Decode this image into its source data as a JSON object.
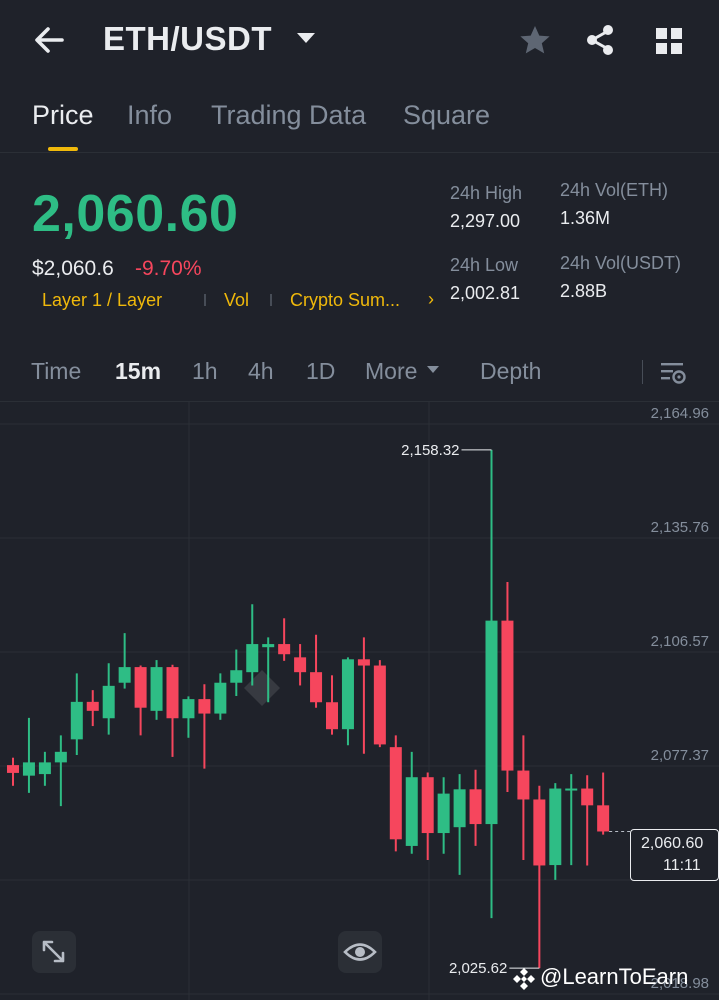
{
  "header": {
    "back_icon": "arrow-left-icon",
    "pair": "ETH/USDT",
    "favorite_icon": "star-icon",
    "share_icon": "share-icon",
    "menu_icon": "grid-icon"
  },
  "tabs": [
    {
      "label": "Price",
      "active": true
    },
    {
      "label": "Info",
      "active": false
    },
    {
      "label": "Trading Data",
      "active": false
    },
    {
      "label": "Square",
      "active": false
    }
  ],
  "ticker": {
    "last_price": "2,060.60",
    "usd_price": "$2,060.6",
    "change": "-9.70%",
    "tags": [
      "Layer 1 / Layer",
      "Vol",
      "Crypto Sum..."
    ],
    "stats": {
      "high_label": "24h High",
      "high_value": "2,297.00",
      "low_label": "24h Low",
      "low_value": "2,002.81",
      "vol_base_label": "24h Vol(ETH)",
      "vol_base_value": "1.36M",
      "vol_quote_label": "24h Vol(USDT)",
      "vol_quote_value": "2.88B"
    }
  },
  "intervals": {
    "items": [
      {
        "label": "Time",
        "active": false
      },
      {
        "label": "15m",
        "active": true
      },
      {
        "label": "1h",
        "active": false
      },
      {
        "label": "4h",
        "active": false
      },
      {
        "label": "1D",
        "active": false
      },
      {
        "label": "More",
        "active": false
      },
      {
        "label": "Depth",
        "active": false
      }
    ]
  },
  "chart_data": {
    "type": "candlestick",
    "y_ticks": [
      "2,164.96",
      "2,135.76",
      "2,106.57",
      "2,077.37",
      "2,048.18",
      "2,018.98"
    ],
    "ylim": [
      2018.98,
      2164.96
    ],
    "high_annotation": "2,158.32",
    "low_annotation": "2,025.62",
    "current_price": "2,060.60",
    "countdown": "11:11",
    "candles": [
      {
        "o": 2077.6,
        "h": 2079.5,
        "l": 2072.3,
        "c": 2075.6
      },
      {
        "o": 2074.9,
        "h": 2089.7,
        "l": 2070.5,
        "c": 2078.3
      },
      {
        "o": 2075.3,
        "h": 2081.0,
        "l": 2072.3,
        "c": 2078.3
      },
      {
        "o": 2078.3,
        "h": 2085.2,
        "l": 2067.1,
        "c": 2081.0
      },
      {
        "o": 2084.2,
        "h": 2101.1,
        "l": 2080.2,
        "c": 2093.8
      },
      {
        "o": 2093.8,
        "h": 2096.8,
        "l": 2087.6,
        "c": 2091.5
      },
      {
        "o": 2089.6,
        "h": 2103.7,
        "l": 2085.4,
        "c": 2097.9
      },
      {
        "o": 2098.7,
        "h": 2111.4,
        "l": 2097.2,
        "c": 2102.7
      },
      {
        "o": 2102.7,
        "h": 2103.1,
        "l": 2085.2,
        "c": 2092.3
      },
      {
        "o": 2091.5,
        "h": 2104.5,
        "l": 2089.2,
        "c": 2102.7
      },
      {
        "o": 2102.7,
        "h": 2103.3,
        "l": 2079.7,
        "c": 2089.6
      },
      {
        "o": 2089.6,
        "h": 2095.2,
        "l": 2084.6,
        "c": 2094.5
      },
      {
        "o": 2094.5,
        "h": 2098.3,
        "l": 2076.7,
        "c": 2090.8
      },
      {
        "o": 2090.8,
        "h": 2101.1,
        "l": 2089.2,
        "c": 2098.7
      },
      {
        "o": 2098.7,
        "h": 2107.2,
        "l": 2095.3,
        "c": 2101.9
      },
      {
        "o": 2101.4,
        "h": 2118.8,
        "l": 2098.0,
        "c": 2108.6
      },
      {
        "o": 2107.8,
        "h": 2110.3,
        "l": 2093.7,
        "c": 2108.6
      },
      {
        "o": 2108.6,
        "h": 2115.2,
        "l": 2104.3,
        "c": 2106.0
      },
      {
        "o": 2105.2,
        "h": 2108.6,
        "l": 2098.0,
        "c": 2101.4
      },
      {
        "o": 2101.4,
        "h": 2111.0,
        "l": 2092.3,
        "c": 2093.7
      },
      {
        "o": 2093.7,
        "h": 2100.6,
        "l": 2085.4,
        "c": 2086.8
      },
      {
        "o": 2086.8,
        "h": 2105.2,
        "l": 2082.7,
        "c": 2104.7
      },
      {
        "o": 2104.7,
        "h": 2110.3,
        "l": 2080.5,
        "c": 2103.1
      },
      {
        "o": 2103.1,
        "h": 2104.5,
        "l": 2082.2,
        "c": 2082.9
      },
      {
        "o": 2082.2,
        "h": 2085.2,
        "l": 2055.5,
        "c": 2058.6
      },
      {
        "o": 2056.9,
        "h": 2081.0,
        "l": 2054.9,
        "c": 2074.5
      },
      {
        "o": 2074.5,
        "h": 2075.7,
        "l": 2053.3,
        "c": 2060.2
      },
      {
        "o": 2060.2,
        "h": 2074.5,
        "l": 2054.9,
        "c": 2070.3
      },
      {
        "o": 2061.7,
        "h": 2075.3,
        "l": 2049.5,
        "c": 2071.4
      },
      {
        "o": 2071.4,
        "h": 2076.4,
        "l": 2056.9,
        "c": 2062.5
      },
      {
        "o": 2062.5,
        "h": 2158.32,
        "l": 2038.4,
        "c": 2114.6
      },
      {
        "o": 2114.6,
        "h": 2124.5,
        "l": 2070.7,
        "c": 2076.2
      },
      {
        "o": 2076.2,
        "h": 2085.2,
        "l": 2053.3,
        "c": 2068.8
      },
      {
        "o": 2068.8,
        "h": 2072.3,
        "l": 2025.62,
        "c": 2051.9
      },
      {
        "o": 2052.0,
        "h": 2073.0,
        "l": 2048.2,
        "c": 2071.6
      },
      {
        "o": 2071.6,
        "h": 2075.3,
        "l": 2052.0,
        "c": 2071.6
      },
      {
        "o": 2071.6,
        "h": 2075.0,
        "l": 2051.9,
        "c": 2067.3
      },
      {
        "o": 2067.3,
        "h": 2075.7,
        "l": 2059.8,
        "c": 2060.6
      }
    ]
  },
  "watermark": {
    "handle": "@LearnToEarn"
  }
}
